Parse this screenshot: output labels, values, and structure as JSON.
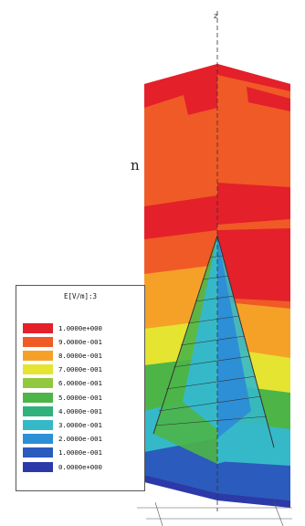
{
  "side_text": "n",
  "axis_label": "z",
  "legend": {
    "title": "E[V/m]:3",
    "entries": [
      {
        "label": "1.0000e+000",
        "color": "#e4202a"
      },
      {
        "label": "9.0000e-001",
        "color": "#ef5a27"
      },
      {
        "label": "8.0000e-001",
        "color": "#f5a128"
      },
      {
        "label": "7.0000e-001",
        "color": "#e4e431"
      },
      {
        "label": "6.0000e-001",
        "color": "#92c83e"
      },
      {
        "label": "5.0000e-001",
        "color": "#4db547"
      },
      {
        "label": "4.0000e-001",
        "color": "#2fb27c"
      },
      {
        "label": "3.0000e-001",
        "color": "#35b9c9"
      },
      {
        "label": "2.0000e-001",
        "color": "#2d8fd6"
      },
      {
        "label": "1.0000e-001",
        "color": "#2a5bbd"
      },
      {
        "label": "0.0000e+000",
        "color": "#2b3aa8"
      }
    ]
  }
}
